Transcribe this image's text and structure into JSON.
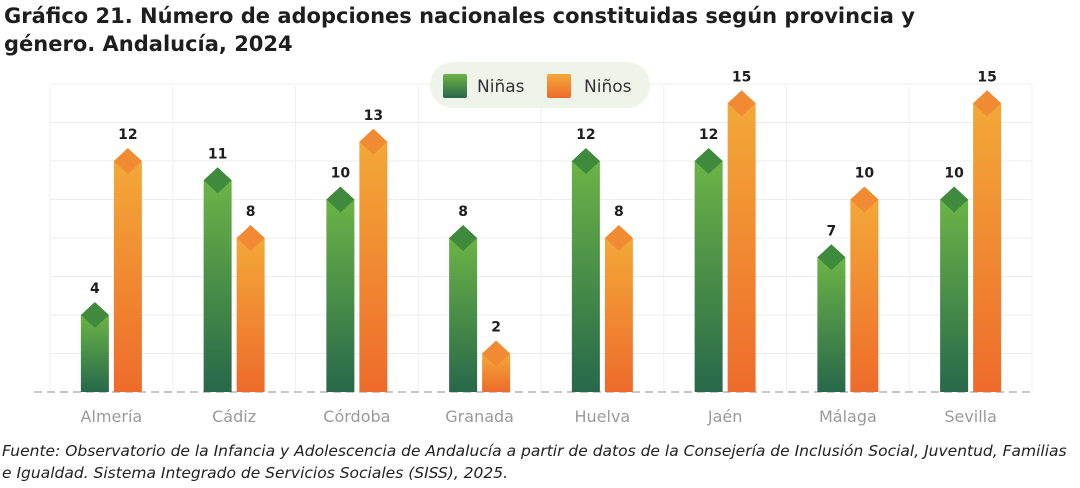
{
  "chart_data": {
    "type": "bar",
    "title": "Gráfico 21. Número de adopciones nacionales constituidas según provincia y género. Andalucía, 2024",
    "categories": [
      "Almería",
      "Cádiz",
      "Córdoba",
      "Granada",
      "Huelva",
      "Jaén",
      "Málaga",
      "Sevilla"
    ],
    "series": [
      {
        "name": "Niñas",
        "values": [
          4,
          11,
          10,
          8,
          12,
          12,
          7,
          10
        ]
      },
      {
        "name": "Niños",
        "values": [
          12,
          8,
          13,
          2,
          8,
          15,
          10,
          15
        ]
      }
    ],
    "ylim": [
      0,
      16
    ],
    "xlabel": "",
    "ylabel": "",
    "grid": true,
    "legend": "top-center",
    "colors": {
      "girls_top": "#6bb446",
      "girls_bottom": "#27684a",
      "girls_diamond": "#3f8a3d",
      "boys_top": "#f3a838",
      "boys_bottom": "#ee6b2b",
      "boys_diamond": "#f08a33",
      "legend_bg": "#eef4ea"
    }
  },
  "source_note": "Fuente: Observatorio de la Infancia y Adolescencia de Andalucía a partir de datos de la Consejería de Inclusión Social, Juventud, Familias e Igualdad. Sistema Integrado de Servicios Sociales (SISS), 2025."
}
